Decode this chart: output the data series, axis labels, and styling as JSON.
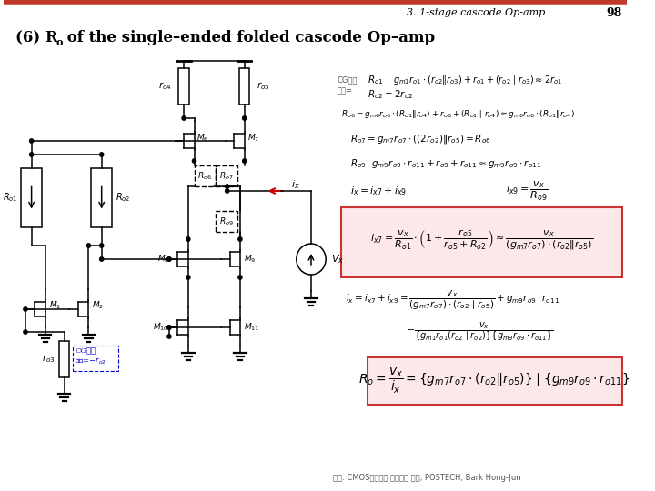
{
  "bg_color": "#ffffff",
  "header_line_color": "#c0392b",
  "header_text": "3. 1-stage cascode Op-amp",
  "header_page": "98",
  "footer_text": "참조: CMOS아날로그 집적회로 설계, POSTECH, Bark Hong-Jun",
  "box1_facecolor": "#fce8e8",
  "box1_edgecolor": "#cc3333",
  "box2_facecolor": "#fce8e8",
  "box2_edgecolor": "#cc3333",
  "cg_label_color": "#555555",
  "cg_box_color": "#0000cc",
  "arrow_color": "#cc0000",
  "circuit_color": "#000000"
}
